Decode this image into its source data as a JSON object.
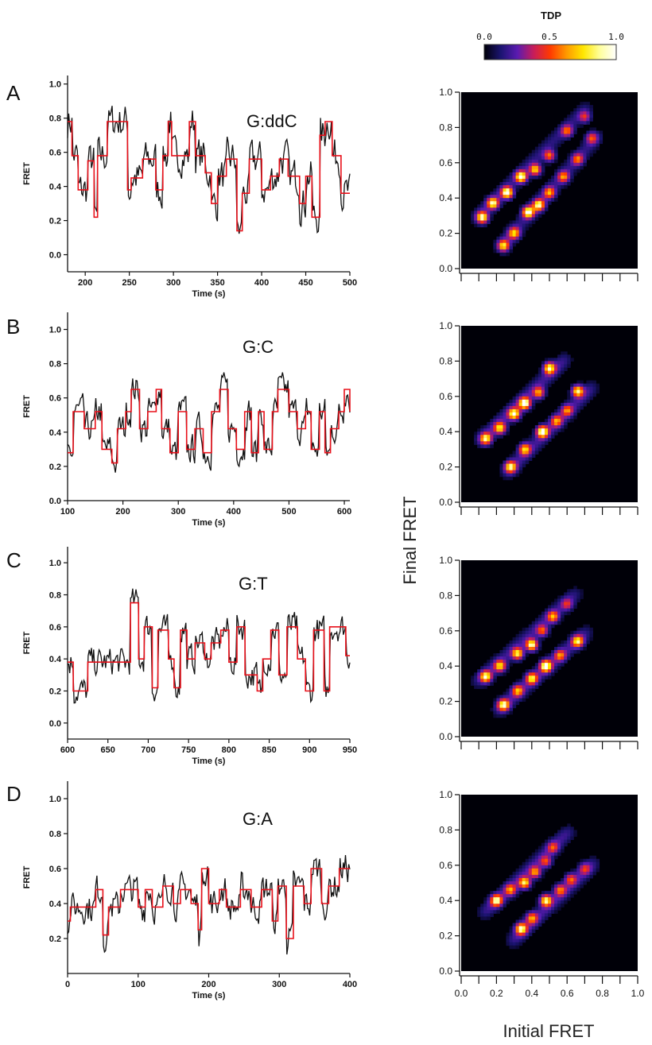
{
  "colorbar": {
    "title": "TDP",
    "ticks": [
      "0.0",
      "0.5",
      "1.0"
    ],
    "stops": [
      "#000008",
      "#1b1470",
      "#5a1bb0",
      "#c81d5a",
      "#ff3a00",
      "#ff9a00",
      "#ffe600",
      "#ffff9c",
      "#ffffff"
    ]
  },
  "heatmap_axes": {
    "xlabel": "Initial FRET",
    "ylabel": "Final FRET",
    "ticks": [
      "0.0",
      "0.2",
      "0.4",
      "0.6",
      "0.8",
      "1.0"
    ]
  },
  "colors": {
    "raw": "#111111",
    "fit": "#e8101a"
  },
  "chart_data": [
    {
      "type": "line",
      "panel": "A",
      "sample": "G:ddC",
      "xlabel": "Time (s)",
      "ylabel": "FRET",
      "xlim": [
        180,
        500
      ],
      "ylim": [
        -0.1,
        1.05
      ],
      "xticks": [
        "200",
        "250",
        "300",
        "350",
        "400",
        "450",
        "500"
      ],
      "yticks": [
        "0.0",
        "0.2",
        "0.4",
        "0.6",
        "0.8",
        "1.0"
      ],
      "noise": 0.06,
      "series": [
        {
          "role": "fit",
          "steps": [
            [
              180,
              0.78
            ],
            [
              185,
              0.58
            ],
            [
              192,
              0.38
            ],
            [
              203,
              0.55
            ],
            [
              210,
              0.22
            ],
            [
              214,
              0.58
            ],
            [
              225,
              0.78
            ],
            [
              248,
              0.38
            ],
            [
              252,
              0.45
            ],
            [
              265,
              0.56
            ],
            [
              280,
              0.38
            ],
            [
              288,
              0.58
            ],
            [
              294,
              0.78
            ],
            [
              298,
              0.58
            ],
            [
              318,
              0.78
            ],
            [
              325,
              0.58
            ],
            [
              336,
              0.48
            ],
            [
              343,
              0.3
            ],
            [
              350,
              0.46
            ],
            [
              360,
              0.56
            ],
            [
              372,
              0.14
            ],
            [
              378,
              0.36
            ],
            [
              386,
              0.56
            ],
            [
              400,
              0.38
            ],
            [
              410,
              0.46
            ],
            [
              420,
              0.56
            ],
            [
              430,
              0.46
            ],
            [
              443,
              0.3
            ],
            [
              450,
              0.46
            ],
            [
              457,
              0.22
            ],
            [
              466,
              0.7
            ],
            [
              472,
              0.78
            ],
            [
              480,
              0.58
            ],
            [
              490,
              0.36
            ],
            [
              500,
              0.36
            ]
          ]
        }
      ]
    },
    {
      "type": "line",
      "panel": "B",
      "sample": "G:C",
      "xlabel": "Time (s)",
      "ylabel": "FRET",
      "xlim": [
        100,
        610
      ],
      "ylim": [
        0.0,
        1.1
      ],
      "xticks": [
        "100",
        "200",
        "300",
        "400",
        "500",
        "600"
      ],
      "yticks": [
        "0.0",
        "0.2",
        "0.4",
        "0.6",
        "0.8",
        "1.0"
      ],
      "noise": 0.05,
      "series": [
        {
          "role": "fit",
          "steps": [
            [
              100,
              0.28
            ],
            [
              110,
              0.52
            ],
            [
              130,
              0.42
            ],
            [
              150,
              0.52
            ],
            [
              162,
              0.3
            ],
            [
              180,
              0.22
            ],
            [
              190,
              0.42
            ],
            [
              205,
              0.52
            ],
            [
              215,
              0.65
            ],
            [
              230,
              0.42
            ],
            [
              245,
              0.52
            ],
            [
              260,
              0.65
            ],
            [
              270,
              0.42
            ],
            [
              285,
              0.28
            ],
            [
              300,
              0.52
            ],
            [
              315,
              0.3
            ],
            [
              330,
              0.42
            ],
            [
              345,
              0.28
            ],
            [
              360,
              0.52
            ],
            [
              375,
              0.65
            ],
            [
              390,
              0.42
            ],
            [
              405,
              0.3
            ],
            [
              420,
              0.52
            ],
            [
              432,
              0.28
            ],
            [
              445,
              0.52
            ],
            [
              455,
              0.3
            ],
            [
              470,
              0.52
            ],
            [
              480,
              0.65
            ],
            [
              500,
              0.52
            ],
            [
              515,
              0.42
            ],
            [
              530,
              0.52
            ],
            [
              540,
              0.3
            ],
            [
              555,
              0.52
            ],
            [
              565,
              0.28
            ],
            [
              575,
              0.42
            ],
            [
              590,
              0.52
            ],
            [
              600,
              0.65
            ],
            [
              610,
              0.52
            ]
          ]
        }
      ]
    },
    {
      "type": "line",
      "panel": "C",
      "sample": "G:T",
      "xlabel": "Time (s)",
      "ylabel": "FRET",
      "xlim": [
        600,
        950
      ],
      "ylim": [
        -0.1,
        1.1
      ],
      "xticks": [
        "600",
        "650",
        "700",
        "750",
        "800",
        "850",
        "900",
        "950"
      ],
      "yticks": [
        "0.0",
        "0.2",
        "0.4",
        "0.6",
        "0.8",
        "1.0"
      ],
      "noise": 0.05,
      "series": [
        {
          "role": "fit",
          "steps": [
            [
              600,
              0.38
            ],
            [
              607,
              0.2
            ],
            [
              625,
              0.38
            ],
            [
              678,
              0.75
            ],
            [
              688,
              0.4
            ],
            [
              695,
              0.6
            ],
            [
              705,
              0.22
            ],
            [
              712,
              0.58
            ],
            [
              725,
              0.4
            ],
            [
              732,
              0.22
            ],
            [
              740,
              0.58
            ],
            [
              748,
              0.4
            ],
            [
              758,
              0.5
            ],
            [
              770,
              0.4
            ],
            [
              778,
              0.5
            ],
            [
              790,
              0.58
            ],
            [
              800,
              0.38
            ],
            [
              810,
              0.6
            ],
            [
              820,
              0.3
            ],
            [
              835,
              0.2
            ],
            [
              842,
              0.4
            ],
            [
              852,
              0.58
            ],
            [
              862,
              0.3
            ],
            [
              872,
              0.6
            ],
            [
              885,
              0.4
            ],
            [
              895,
              0.2
            ],
            [
              905,
              0.58
            ],
            [
              918,
              0.2
            ],
            [
              925,
              0.6
            ],
            [
              945,
              0.42
            ],
            [
              950,
              0.42
            ]
          ]
        }
      ]
    },
    {
      "type": "line",
      "panel": "D",
      "sample": "G:A",
      "xlabel": "Time (s)",
      "ylabel": "FRET",
      "xlim": [
        0,
        400
      ],
      "ylim": [
        0.0,
        1.1
      ],
      "xticks": [
        "0",
        "100",
        "200",
        "300",
        "400"
      ],
      "yticks": [
        "0.2",
        "0.4",
        "0.6",
        "0.8",
        "1.0"
      ],
      "noise": 0.05,
      "series": [
        {
          "role": "fit",
          "steps": [
            [
              0,
              0.3
            ],
            [
              4,
              0.38
            ],
            [
              40,
              0.48
            ],
            [
              50,
              0.22
            ],
            [
              58,
              0.38
            ],
            [
              75,
              0.48
            ],
            [
              100,
              0.38
            ],
            [
              110,
              0.48
            ],
            [
              120,
              0.38
            ],
            [
              135,
              0.5
            ],
            [
              150,
              0.4
            ],
            [
              160,
              0.48
            ],
            [
              175,
              0.4
            ],
            [
              185,
              0.25
            ],
            [
              190,
              0.6
            ],
            [
              200,
              0.4
            ],
            [
              215,
              0.48
            ],
            [
              225,
              0.38
            ],
            [
              245,
              0.48
            ],
            [
              260,
              0.38
            ],
            [
              275,
              0.48
            ],
            [
              290,
              0.3
            ],
            [
              298,
              0.5
            ],
            [
              310,
              0.2
            ],
            [
              320,
              0.5
            ],
            [
              335,
              0.4
            ],
            [
              345,
              0.6
            ],
            [
              360,
              0.4
            ],
            [
              370,
              0.5
            ],
            [
              385,
              0.6
            ],
            [
              400,
              0.6
            ]
          ]
        }
      ]
    },
    {
      "type": "heatmap",
      "panel": "A",
      "xlim": [
        0,
        1
      ],
      "ylim": [
        0,
        1
      ],
      "xlabel": "Initial FRET",
      "ylabel": "Final FRET",
      "ridges": [
        {
          "from": [
            0.08,
            0.28
          ],
          "to": [
            0.72,
            0.92
          ],
          "peaks": [
            [
              0.12,
              0.29,
              0.9
            ],
            [
              0.18,
              0.37,
              0.85
            ],
            [
              0.26,
              0.43,
              1.0
            ],
            [
              0.34,
              0.52,
              0.95
            ],
            [
              0.42,
              0.56,
              0.75
            ],
            [
              0.5,
              0.64,
              0.55
            ],
            [
              0.6,
              0.78,
              0.5
            ],
            [
              0.7,
              0.86,
              0.4
            ]
          ]
        },
        {
          "from": [
            0.22,
            0.12
          ],
          "to": [
            0.78,
            0.76
          ],
          "peaks": [
            [
              0.24,
              0.13,
              0.75
            ],
            [
              0.3,
              0.2,
              0.7
            ],
            [
              0.38,
              0.32,
              0.95
            ],
            [
              0.44,
              0.36,
              0.85
            ],
            [
              0.5,
              0.43,
              0.6
            ],
            [
              0.58,
              0.52,
              0.55
            ],
            [
              0.66,
              0.62,
              0.5
            ],
            [
              0.74,
              0.74,
              0.45
            ]
          ]
        }
      ]
    },
    {
      "type": "heatmap",
      "panel": "B",
      "xlim": [
        0,
        1
      ],
      "ylim": [
        0,
        1
      ],
      "xlabel": "Initial FRET",
      "ylabel": "Final FRET",
      "ridges": [
        {
          "from": [
            0.1,
            0.34
          ],
          "to": [
            0.6,
            0.82
          ],
          "peaks": [
            [
              0.14,
              0.36,
              0.8
            ],
            [
              0.22,
              0.42,
              0.75
            ],
            [
              0.3,
              0.5,
              0.9
            ],
            [
              0.36,
              0.56,
              1.0
            ],
            [
              0.44,
              0.62,
              0.6
            ],
            [
              0.5,
              0.76,
              0.85
            ]
          ]
        },
        {
          "from": [
            0.25,
            0.16
          ],
          "to": [
            0.75,
            0.66
          ],
          "peaks": [
            [
              0.28,
              0.2,
              0.8
            ],
            [
              0.36,
              0.3,
              0.7
            ],
            [
              0.46,
              0.4,
              1.0
            ],
            [
              0.54,
              0.46,
              0.55
            ],
            [
              0.6,
              0.52,
              0.5
            ],
            [
              0.66,
              0.63,
              0.85
            ]
          ]
        }
      ]
    },
    {
      "type": "heatmap",
      "panel": "C",
      "xlim": [
        0,
        1
      ],
      "ylim": [
        0,
        1
      ],
      "xlabel": "Initial FRET",
      "ylabel": "Final FRET",
      "ridges": [
        {
          "from": [
            0.08,
            0.3
          ],
          "to": [
            0.66,
            0.82
          ],
          "peaks": [
            [
              0.14,
              0.34,
              0.85
            ],
            [
              0.22,
              0.4,
              0.7
            ],
            [
              0.32,
              0.47,
              0.8
            ],
            [
              0.4,
              0.52,
              0.95
            ],
            [
              0.46,
              0.6,
              0.5
            ],
            [
              0.52,
              0.68,
              0.6
            ],
            [
              0.6,
              0.75,
              0.35
            ]
          ]
        },
        {
          "from": [
            0.2,
            0.14
          ],
          "to": [
            0.72,
            0.6
          ],
          "peaks": [
            [
              0.24,
              0.18,
              0.85
            ],
            [
              0.32,
              0.26,
              0.6
            ],
            [
              0.4,
              0.33,
              0.75
            ],
            [
              0.48,
              0.4,
              1.0
            ],
            [
              0.56,
              0.46,
              0.5
            ],
            [
              0.66,
              0.54,
              0.75
            ]
          ]
        }
      ]
    },
    {
      "type": "heatmap",
      "panel": "D",
      "xlim": [
        0,
        1
      ],
      "ylim": [
        0,
        1
      ],
      "xlabel": "Initial FRET",
      "ylabel": "Final FRET",
      "ridges": [
        {
          "from": [
            0.12,
            0.32
          ],
          "to": [
            0.62,
            0.8
          ],
          "peaks": [
            [
              0.2,
              0.4,
              0.85
            ],
            [
              0.28,
              0.46,
              0.55
            ],
            [
              0.36,
              0.5,
              0.8
            ],
            [
              0.42,
              0.56,
              0.6
            ],
            [
              0.48,
              0.62,
              0.45
            ],
            [
              0.52,
              0.7,
              0.4
            ]
          ]
        },
        {
          "from": [
            0.28,
            0.16
          ],
          "to": [
            0.76,
            0.62
          ],
          "peaks": [
            [
              0.34,
              0.24,
              0.85
            ],
            [
              0.4,
              0.3,
              0.55
            ],
            [
              0.48,
              0.4,
              0.85
            ],
            [
              0.56,
              0.46,
              0.5
            ],
            [
              0.62,
              0.52,
              0.45
            ],
            [
              0.7,
              0.58,
              0.35
            ]
          ]
        }
      ]
    }
  ]
}
